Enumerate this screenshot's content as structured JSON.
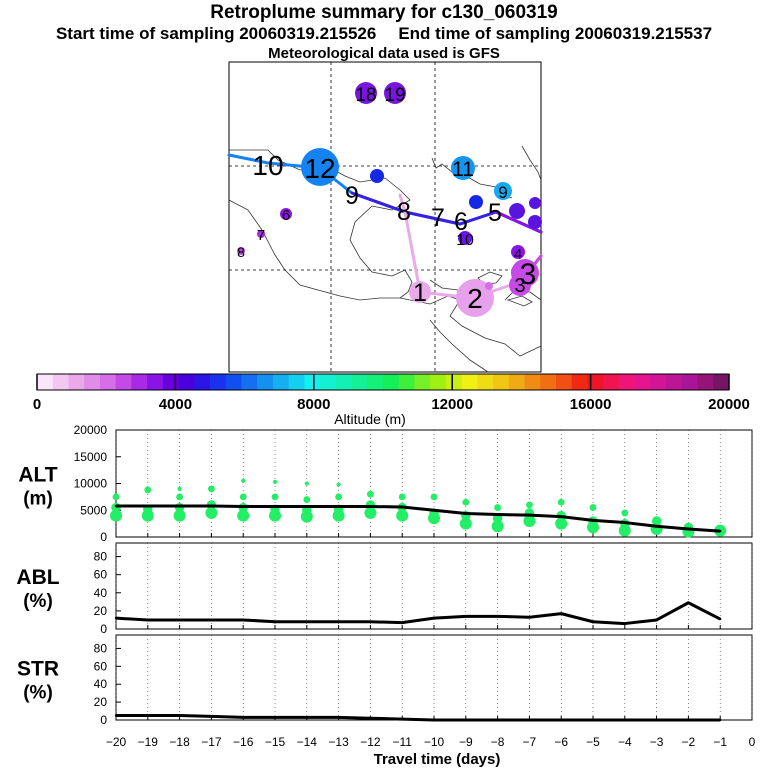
{
  "header": {
    "title": "Retroplume summary for c130_060319",
    "start_label": "Start time of sampling 20060319.215526",
    "end_label": "End time of sampling 20060319.215537",
    "met_label": "Meteorological data used is GFS"
  },
  "colorbar": {
    "label": "Altitude (m)",
    "min": 0,
    "max": 20000,
    "ticks": [
      "0",
      "4000",
      "8000",
      "12000",
      "16000",
      "20000"
    ],
    "colors": [
      "#fae6fa",
      "#f2c8f2",
      "#eaaaea",
      "#e08ce8",
      "#d66ee8",
      "#c24ae6",
      "#a82ae6",
      "#8a14e6",
      "#6a00e0",
      "#4a00dc",
      "#2a14e6",
      "#1a32f0",
      "#1050f0",
      "#1470f0",
      "#1490f0",
      "#14b0f0",
      "#14d0f0",
      "#14f0f0",
      "#14f0d2",
      "#14f0b4",
      "#14f096",
      "#14f078",
      "#14f05a",
      "#3cf03c",
      "#78f028",
      "#a0f014",
      "#c8f014",
      "#f0f014",
      "#f0dc14",
      "#f0c814",
      "#f0aa14",
      "#f08c14",
      "#f06e14",
      "#f05014",
      "#f02814",
      "#f01428",
      "#f01450",
      "#f01478",
      "#e6148c",
      "#d21496",
      "#be1496",
      "#aa1496",
      "#961478",
      "#781464"
    ]
  },
  "map": {
    "labels": [
      {
        "text": "18",
        "color": "#7a14e0"
      },
      {
        "text": "19",
        "color": "#7a14e0"
      },
      {
        "text": "10",
        "color": "#1482f0"
      },
      {
        "text": "12",
        "color": "#1482f0"
      },
      {
        "text": "11",
        "color": "#1482f0"
      },
      {
        "text": "9",
        "color": "#1450f0"
      },
      {
        "text": "8",
        "color": "#1450f0"
      },
      {
        "text": "7",
        "color": "#7814e0"
      },
      {
        "text": "6",
        "color": "#7814e0"
      },
      {
        "text": "5",
        "color": "#7814e0"
      },
      {
        "text": "10",
        "color": "#6a14e6"
      },
      {
        "text": "9",
        "color": "#14aaf0"
      },
      {
        "text": "4",
        "color": "#6a14e6"
      },
      {
        "text": "3",
        "color": "#c84ae6"
      },
      {
        "text": "3",
        "color": "#c84ae6"
      },
      {
        "text": "2",
        "color": "#e6a0ec"
      },
      {
        "text": "1",
        "color": "#e6a0ec"
      },
      {
        "text": "7",
        "color": "#a82ae6"
      },
      {
        "text": "6",
        "color": "#a82ae6"
      },
      {
        "text": "8",
        "color": "#a82ae6"
      }
    ]
  },
  "chart_data": [
    {
      "type": "line",
      "title": "ALT (m)",
      "ylabel_line1": "ALT",
      "ylabel_line2": "(m)",
      "x": [
        -20,
        -19,
        -18,
        -17,
        -16,
        -15,
        -14,
        -13,
        -12,
        -11,
        -10,
        -9,
        -8,
        -7,
        -6,
        -5,
        -4,
        -3,
        -2,
        -1
      ],
      "values": [
        5800,
        5800,
        5800,
        5800,
        5700,
        5700,
        5700,
        5700,
        5700,
        5600,
        5000,
        4400,
        4200,
        4100,
        3800,
        3100,
        2700,
        2000,
        1500,
        1100
      ],
      "scatter": [
        {
          "x": -20,
          "y": [
            4000,
            5500,
            7500
          ]
        },
        {
          "x": -19,
          "y": [
            4000,
            5200,
            8800
          ]
        },
        {
          "x": -18,
          "y": [
            4000,
            5500,
            7500,
            9000
          ]
        },
        {
          "x": -17,
          "y": [
            4500,
            6000,
            9000
          ]
        },
        {
          "x": -16,
          "y": [
            4000,
            5500,
            7500,
            10500
          ]
        },
        {
          "x": -15,
          "y": [
            4000,
            5200,
            7500,
            10300
          ]
        },
        {
          "x": -14,
          "y": [
            3800,
            5000,
            7000,
            10000
          ]
        },
        {
          "x": -13,
          "y": [
            4000,
            5200,
            7500,
            9800
          ]
        },
        {
          "x": -12,
          "y": [
            4500,
            6000,
            8000
          ]
        },
        {
          "x": -11,
          "y": [
            4000,
            5500,
            7500
          ]
        },
        {
          "x": -10,
          "y": [
            3500,
            4500,
            7500
          ]
        },
        {
          "x": -9,
          "y": [
            2500,
            4000,
            6500
          ]
        },
        {
          "x": -8,
          "y": [
            2000,
            3500,
            5500
          ]
        },
        {
          "x": -7,
          "y": [
            3000,
            4500,
            6000
          ]
        },
        {
          "x": -6,
          "y": [
            2500,
            4000,
            6500
          ]
        },
        {
          "x": -5,
          "y": [
            1800,
            3000,
            5500
          ]
        },
        {
          "x": -4,
          "y": [
            1200,
            2500,
            4500
          ]
        },
        {
          "x": -3,
          "y": [
            1500,
            3000
          ]
        },
        {
          "x": -2,
          "y": [
            1000,
            1800
          ]
        },
        {
          "x": -1,
          "y": [
            1200
          ]
        }
      ],
      "ylim": [
        0,
        20000
      ],
      "yticks": [
        "0",
        "5000",
        "10000",
        "15000",
        "20000"
      ]
    },
    {
      "type": "line",
      "title": "ABL (%)",
      "ylabel_line1": "ABL",
      "ylabel_line2": "(%)",
      "x": [
        -20,
        -19,
        -18,
        -17,
        -16,
        -15,
        -14,
        -13,
        -12,
        -11,
        -10,
        -9,
        -8,
        -7,
        -6,
        -5,
        -4,
        -3,
        -2,
        -1
      ],
      "values": [
        12,
        10,
        10,
        10,
        10,
        8,
        8,
        8,
        8,
        7,
        12,
        14,
        14,
        13,
        17,
        8,
        6,
        10,
        29,
        11
      ],
      "ylim": [
        0,
        95
      ],
      "yticks": [
        "0",
        "20",
        "40",
        "60",
        "80"
      ]
    },
    {
      "type": "line",
      "title": "STR (%)",
      "ylabel_line1": "STR",
      "ylabel_line2": "(%)",
      "x": [
        -20,
        -19,
        -18,
        -17,
        -16,
        -15,
        -14,
        -13,
        -12,
        -11,
        -10,
        -9,
        -8,
        -7,
        -6,
        -5,
        -4,
        -3,
        -2,
        -1
      ],
      "values": [
        5,
        5,
        5,
        4,
        3,
        3,
        3,
        3,
        2,
        1,
        0,
        0,
        0,
        0,
        0,
        0,
        0,
        0,
        0,
        0
      ],
      "ylim": [
        0,
        95
      ],
      "yticks": [
        "0",
        "20",
        "40",
        "60",
        "80"
      ]
    }
  ],
  "xaxis": {
    "label": "Travel time (days)",
    "ticks": [
      "−20",
      "−19",
      "−18",
      "−17",
      "−16",
      "−15",
      "−14",
      "−13",
      "−12",
      "−11",
      "−10",
      "−9",
      "−8",
      "−7",
      "−6",
      "−5",
      "−4",
      "−3",
      "−2",
      "−1",
      "0"
    ]
  }
}
